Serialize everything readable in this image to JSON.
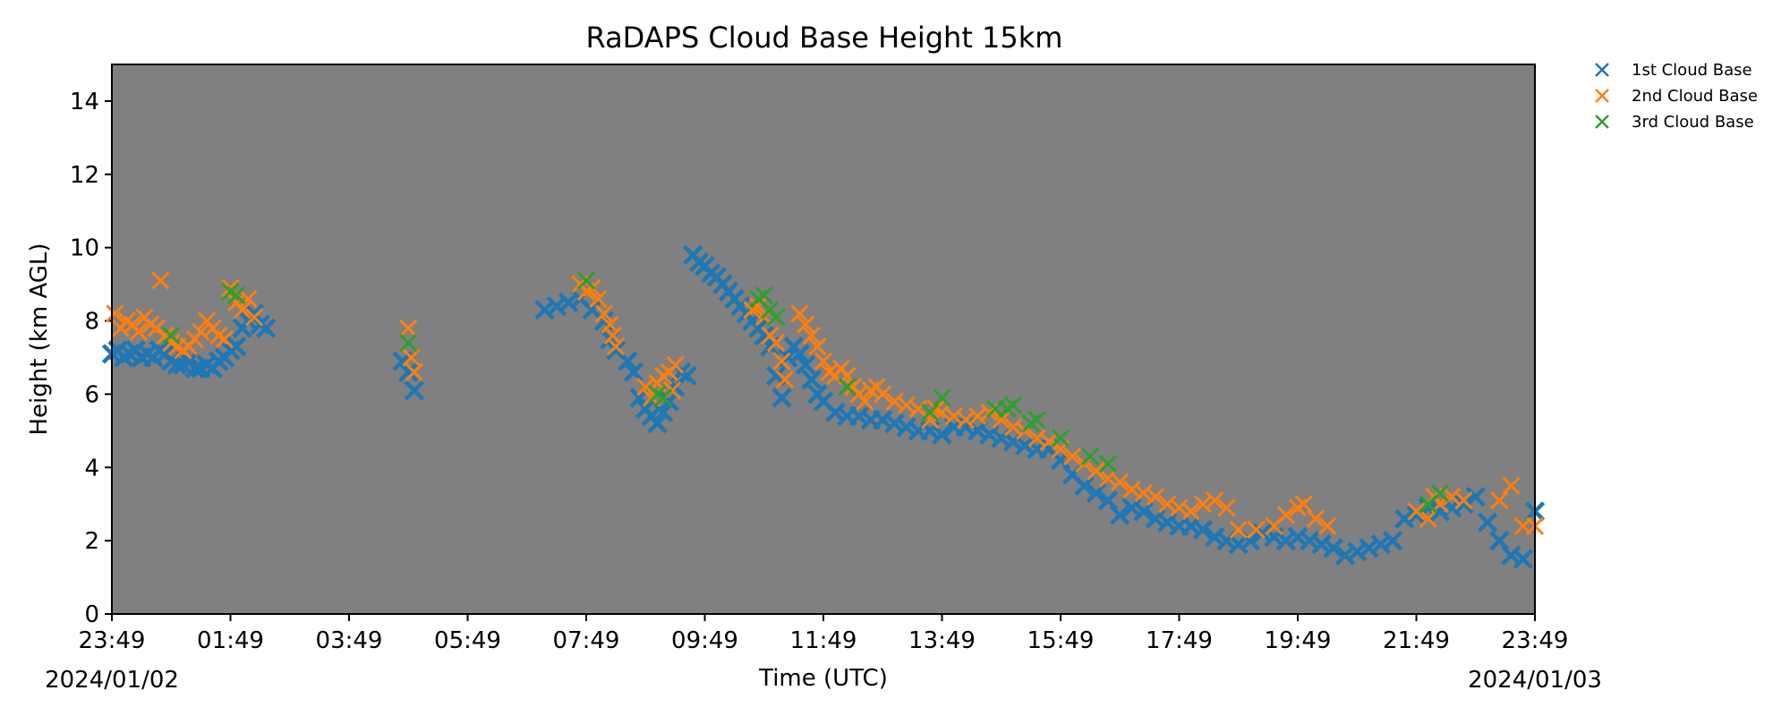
{
  "chart_data": {
    "type": "scatter",
    "title": "RaDAPS Cloud Base Height 15km",
    "xlabel": "Time (UTC)",
    "ylabel": "Height (km AGL)",
    "x_start_date": "2024/01/02",
    "x_end_date": "2024/01/03",
    "x_tick_labels": [
      "23:49",
      "01:49",
      "03:49",
      "05:49",
      "07:49",
      "09:49",
      "11:49",
      "13:49",
      "15:49",
      "17:49",
      "19:49",
      "21:49",
      "23:49"
    ],
    "xlim_hours": [
      0,
      24
    ],
    "ylim": [
      0,
      15
    ],
    "yticks": [
      0,
      2,
      4,
      6,
      8,
      10,
      12,
      14
    ],
    "plot_background": "#808080",
    "legend_position": "outside-top-right",
    "series": [
      {
        "name": "1st Cloud Base",
        "color": "#1f77b4",
        "marker": "x",
        "points": [
          [
            0.0,
            7.1
          ],
          [
            0.1,
            7.2
          ],
          [
            0.2,
            7.0
          ],
          [
            0.3,
            7.1
          ],
          [
            0.4,
            7.2
          ],
          [
            0.5,
            7.0
          ],
          [
            0.6,
            7.1
          ],
          [
            0.7,
            7.0
          ],
          [
            0.8,
            7.2
          ],
          [
            0.9,
            7.1
          ],
          [
            1.0,
            6.9
          ],
          [
            1.1,
            6.8
          ],
          [
            1.2,
            6.8
          ],
          [
            1.3,
            6.9
          ],
          [
            1.4,
            6.7
          ],
          [
            1.5,
            6.7
          ],
          [
            1.6,
            6.8
          ],
          [
            1.7,
            6.7
          ],
          [
            1.8,
            6.9
          ],
          [
            1.9,
            7.0
          ],
          [
            2.0,
            7.2
          ],
          [
            2.1,
            7.3
          ],
          [
            2.2,
            7.8
          ],
          [
            2.3,
            8.0
          ],
          [
            2.4,
            8.2
          ],
          [
            2.5,
            7.9
          ],
          [
            2.6,
            7.8
          ],
          [
            4.9,
            6.9
          ],
          [
            5.0,
            6.6
          ],
          [
            5.1,
            6.1
          ],
          [
            7.3,
            8.3
          ],
          [
            7.5,
            8.4
          ],
          [
            7.7,
            8.5
          ],
          [
            7.9,
            8.6
          ],
          [
            8.1,
            8.3
          ],
          [
            8.3,
            8.0
          ],
          [
            8.4,
            7.5
          ],
          [
            8.5,
            7.2
          ],
          [
            8.7,
            6.9
          ],
          [
            8.8,
            6.6
          ],
          [
            8.9,
            5.9
          ],
          [
            9.0,
            5.6
          ],
          [
            9.1,
            5.4
          ],
          [
            9.2,
            5.2
          ],
          [
            9.3,
            5.5
          ],
          [
            9.4,
            5.8
          ],
          [
            9.5,
            6.2
          ],
          [
            9.6,
            6.6
          ],
          [
            9.7,
            6.5
          ],
          [
            9.8,
            9.8
          ],
          [
            9.9,
            9.6
          ],
          [
            10.0,
            9.5
          ],
          [
            10.1,
            9.3
          ],
          [
            10.2,
            9.2
          ],
          [
            10.3,
            9.0
          ],
          [
            10.4,
            8.8
          ],
          [
            10.5,
            8.6
          ],
          [
            10.6,
            8.4
          ],
          [
            10.7,
            8.2
          ],
          [
            10.8,
            8.0
          ],
          [
            10.9,
            7.8
          ],
          [
            11.0,
            7.6
          ],
          [
            11.1,
            7.3
          ],
          [
            11.2,
            6.5
          ],
          [
            11.3,
            5.9
          ],
          [
            11.4,
            7.0
          ],
          [
            11.5,
            7.3
          ],
          [
            11.6,
            7.1
          ],
          [
            11.7,
            6.8
          ],
          [
            11.8,
            6.4
          ],
          [
            11.9,
            6.0
          ],
          [
            12.0,
            5.8
          ],
          [
            12.2,
            5.5
          ],
          [
            12.4,
            5.4
          ],
          [
            12.6,
            5.4
          ],
          [
            12.8,
            5.3
          ],
          [
            13.0,
            5.3
          ],
          [
            13.2,
            5.2
          ],
          [
            13.4,
            5.1
          ],
          [
            13.6,
            5.0
          ],
          [
            13.8,
            5.0
          ],
          [
            14.0,
            4.9
          ],
          [
            14.2,
            5.1
          ],
          [
            14.4,
            5.1
          ],
          [
            14.6,
            5.0
          ],
          [
            14.8,
            4.9
          ],
          [
            15.0,
            4.8
          ],
          [
            15.2,
            4.7
          ],
          [
            15.4,
            4.6
          ],
          [
            15.6,
            4.5
          ],
          [
            15.8,
            4.5
          ],
          [
            16.0,
            4.2
          ],
          [
            16.2,
            3.8
          ],
          [
            16.4,
            3.5
          ],
          [
            16.6,
            3.3
          ],
          [
            16.8,
            3.1
          ],
          [
            17.0,
            2.7
          ],
          [
            17.2,
            2.9
          ],
          [
            17.4,
            2.8
          ],
          [
            17.6,
            2.6
          ],
          [
            17.8,
            2.5
          ],
          [
            18.0,
            2.4
          ],
          [
            18.2,
            2.4
          ],
          [
            18.4,
            2.3
          ],
          [
            18.6,
            2.1
          ],
          [
            18.8,
            2.0
          ],
          [
            19.0,
            1.9
          ],
          [
            19.2,
            2.0
          ],
          [
            19.4,
            2.2
          ],
          [
            19.6,
            2.1
          ],
          [
            19.8,
            2.0
          ],
          [
            20.0,
            2.1
          ],
          [
            20.2,
            2.0
          ],
          [
            20.4,
            1.9
          ],
          [
            20.6,
            1.8
          ],
          [
            20.8,
            1.6
          ],
          [
            21.0,
            1.7
          ],
          [
            21.2,
            1.8
          ],
          [
            21.4,
            1.9
          ],
          [
            21.6,
            2.0
          ],
          [
            21.8,
            2.6
          ],
          [
            22.0,
            2.7
          ],
          [
            22.2,
            2.9
          ],
          [
            22.4,
            2.8
          ],
          [
            22.6,
            2.9
          ],
          [
            22.8,
            3.0
          ],
          [
            23.0,
            3.2
          ],
          [
            23.2,
            2.5
          ],
          [
            23.4,
            2.0
          ],
          [
            23.6,
            1.6
          ],
          [
            23.8,
            1.5
          ],
          [
            24.0,
            2.8
          ]
        ]
      },
      {
        "name": "2nd Cloud Base",
        "color": "#ff7f0e",
        "marker": "x",
        "points": [
          [
            0.05,
            8.2
          ],
          [
            0.15,
            7.8
          ],
          [
            0.25,
            8.0
          ],
          [
            0.35,
            7.9
          ],
          [
            0.45,
            7.7
          ],
          [
            0.55,
            8.1
          ],
          [
            0.65,
            7.9
          ],
          [
            0.75,
            7.8
          ],
          [
            0.82,
            9.1
          ],
          [
            0.9,
            7.6
          ],
          [
            1.0,
            7.4
          ],
          [
            1.1,
            7.3
          ],
          [
            1.2,
            7.2
          ],
          [
            1.3,
            7.3
          ],
          [
            1.4,
            7.5
          ],
          [
            1.5,
            7.7
          ],
          [
            1.6,
            8.0
          ],
          [
            1.7,
            7.8
          ],
          [
            1.8,
            7.6
          ],
          [
            1.9,
            7.5
          ],
          [
            2.0,
            8.9
          ],
          [
            2.1,
            8.5
          ],
          [
            2.2,
            8.3
          ],
          [
            2.3,
            8.6
          ],
          [
            2.4,
            8.1
          ],
          [
            5.0,
            7.8
          ],
          [
            5.05,
            7.0
          ],
          [
            5.1,
            6.6
          ],
          [
            7.9,
            9.0
          ],
          [
            8.0,
            8.8
          ],
          [
            8.1,
            8.9
          ],
          [
            8.2,
            8.6
          ],
          [
            8.3,
            8.2
          ],
          [
            8.4,
            7.9
          ],
          [
            8.45,
            7.6
          ],
          [
            8.5,
            7.3
          ],
          [
            9.0,
            6.2
          ],
          [
            9.1,
            5.9
          ],
          [
            9.2,
            6.3
          ],
          [
            9.3,
            6.5
          ],
          [
            9.4,
            6.6
          ],
          [
            9.5,
            6.8
          ],
          [
            9.45,
            6.1
          ],
          [
            10.8,
            8.3
          ],
          [
            10.9,
            8.4
          ],
          [
            11.0,
            8.1
          ],
          [
            11.1,
            7.6
          ],
          [
            11.2,
            7.4
          ],
          [
            11.3,
            6.9
          ],
          [
            11.35,
            6.4
          ],
          [
            11.6,
            8.2
          ],
          [
            11.7,
            7.9
          ],
          [
            11.8,
            7.6
          ],
          [
            11.9,
            7.3
          ],
          [
            12.0,
            6.9
          ],
          [
            12.1,
            6.6
          ],
          [
            12.2,
            6.5
          ],
          [
            12.3,
            6.7
          ],
          [
            12.4,
            6.5
          ],
          [
            12.5,
            6.2
          ],
          [
            12.6,
            6.0
          ],
          [
            12.7,
            5.8
          ],
          [
            12.8,
            6.1
          ],
          [
            12.9,
            6.2
          ],
          [
            13.0,
            6.0
          ],
          [
            13.2,
            5.8
          ],
          [
            13.4,
            5.7
          ],
          [
            13.6,
            5.6
          ],
          [
            13.8,
            5.3
          ],
          [
            13.9,
            5.6
          ],
          [
            14.0,
            5.5
          ],
          [
            14.2,
            5.4
          ],
          [
            14.4,
            5.3
          ],
          [
            14.6,
            5.4
          ],
          [
            14.8,
            5.5
          ],
          [
            15.0,
            5.3
          ],
          [
            15.2,
            5.1
          ],
          [
            15.4,
            5.0
          ],
          [
            15.6,
            4.8
          ],
          [
            15.8,
            4.7
          ],
          [
            16.0,
            4.5
          ],
          [
            16.2,
            4.3
          ],
          [
            16.4,
            4.1
          ],
          [
            16.6,
            3.9
          ],
          [
            16.8,
            3.7
          ],
          [
            17.0,
            3.6
          ],
          [
            17.2,
            3.4
          ],
          [
            17.4,
            3.3
          ],
          [
            17.6,
            3.2
          ],
          [
            17.8,
            3.0
          ],
          [
            18.0,
            2.9
          ],
          [
            18.2,
            2.8
          ],
          [
            18.4,
            3.0
          ],
          [
            18.6,
            3.1
          ],
          [
            18.8,
            2.9
          ],
          [
            19.0,
            2.3
          ],
          [
            19.3,
            2.3
          ],
          [
            19.6,
            2.4
          ],
          [
            19.8,
            2.7
          ],
          [
            20.0,
            2.9
          ],
          [
            20.1,
            3.0
          ],
          [
            20.3,
            2.6
          ],
          [
            20.5,
            2.4
          ],
          [
            22.0,
            2.8
          ],
          [
            22.2,
            2.6
          ],
          [
            22.3,
            3.2
          ],
          [
            22.4,
            3.0
          ],
          [
            22.6,
            3.2
          ],
          [
            22.8,
            3.1
          ],
          [
            23.4,
            3.1
          ],
          [
            23.6,
            3.5
          ],
          [
            23.8,
            2.4
          ],
          [
            24.0,
            2.4
          ]
        ]
      },
      {
        "name": "3rd Cloud Base",
        "color": "#2ca02c",
        "marker": "x",
        "points": [
          [
            1.0,
            7.6
          ],
          [
            2.0,
            8.8
          ],
          [
            2.1,
            8.7
          ],
          [
            5.0,
            7.4
          ],
          [
            8.0,
            9.1
          ],
          [
            9.2,
            6.0
          ],
          [
            9.3,
            5.9
          ],
          [
            10.9,
            8.6
          ],
          [
            11.0,
            8.7
          ],
          [
            11.1,
            8.3
          ],
          [
            11.2,
            8.1
          ],
          [
            12.4,
            6.2
          ],
          [
            13.8,
            5.5
          ],
          [
            14.0,
            5.9
          ],
          [
            14.9,
            5.6
          ],
          [
            15.1,
            5.6
          ],
          [
            15.2,
            5.7
          ],
          [
            15.5,
            5.2
          ],
          [
            15.6,
            5.3
          ],
          [
            16.0,
            4.8
          ],
          [
            16.5,
            4.3
          ],
          [
            16.8,
            4.1
          ],
          [
            22.2,
            3.0
          ],
          [
            22.4,
            3.3
          ]
        ]
      }
    ]
  }
}
